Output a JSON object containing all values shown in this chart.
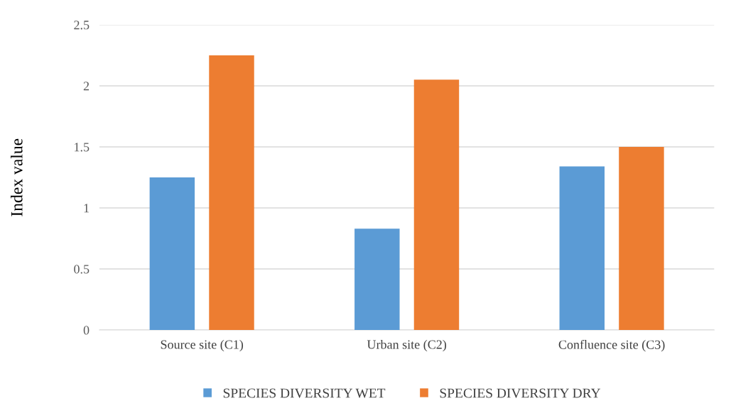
{
  "chart_data": {
    "type": "bar",
    "ylabel": "Index value",
    "categories": [
      "Source site (C1)",
      "Urban site (C2)",
      "Confluence site (C3)"
    ],
    "series": [
      {
        "name": "SPECIES DIVERSITY WET",
        "color": "#5b9bd5",
        "values": [
          1.25,
          0.83,
          1.34
        ]
      },
      {
        "name": "SPECIES DIVERSITY DRY",
        "color": "#ed7d31",
        "values": [
          2.25,
          2.05,
          1.5
        ]
      }
    ],
    "ylim": [
      0,
      2.5
    ],
    "yticks": [
      0,
      0.5,
      1,
      1.5,
      2,
      2.5
    ],
    "grid": "y",
    "legend": "bottom"
  }
}
